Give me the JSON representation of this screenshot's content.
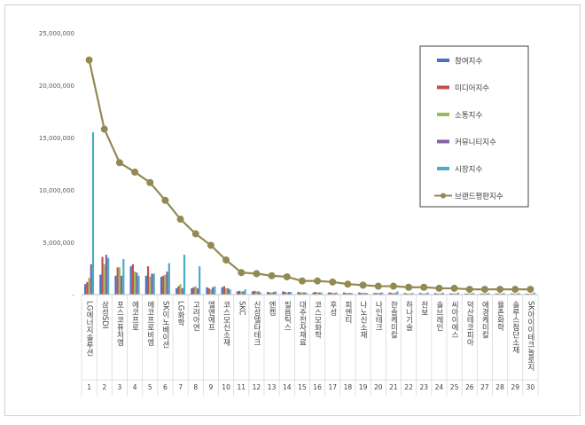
{
  "chart_data": {
    "type": "bar",
    "title": "",
    "xlabel": "",
    "ylabel": "",
    "ylim": [
      0,
      25000000
    ],
    "yticks": [
      "25,000,000",
      "20,000,000",
      "15,000,000",
      "10,000,000",
      "5,000,000",
      "-"
    ],
    "ytick_values": [
      25000000,
      20000000,
      15000000,
      10000000,
      5000000,
      0
    ],
    "legend_position": "top-right",
    "grid": false,
    "categories": [
      "LG에너지솔루션",
      "삼성SDI",
      "포스코퓨처엠",
      "에코프로",
      "에코프로비엠",
      "SK이노베이션",
      "LG화학",
      "고려아연",
      "엘앤에프",
      "코스모신소재",
      "SKC",
      "신성델타테크",
      "엔켐",
      "필옵틱스",
      "대주전자재료",
      "코스모화학",
      "후성",
      "피엔티",
      "나노신소재",
      "나인테크",
      "한솔케미칼",
      "하나기술",
      "천보",
      "솔브레인",
      "씨아이에스",
      "덕산테코피아",
      "애경케미칼",
      "율촌화학",
      "솔루스첨단소재",
      "SK아이이테크놀로지"
    ],
    "indices": [
      "1",
      "2",
      "3",
      "4",
      "5",
      "6",
      "7",
      "8",
      "9",
      "10",
      "11",
      "12",
      "13",
      "14",
      "15",
      "16",
      "17",
      "18",
      "19",
      "20",
      "21",
      "22",
      "23",
      "24",
      "25",
      "26",
      "27",
      "28",
      "29",
      "30"
    ],
    "series": [
      {
        "name": "참여지수",
        "color": "#4472c4",
        "values": [
          1000000,
          1900000,
          1800000,
          2700000,
          1800000,
          1700000,
          600000,
          600000,
          700000,
          700000,
          300000,
          300000,
          250000,
          300000,
          250000,
          200000,
          200000,
          200000,
          200000,
          150000,
          200000,
          150000,
          150000,
          150000,
          120000,
          100000,
          100000,
          100000,
          100000,
          100000
        ]
      },
      {
        "name": "미디어지수",
        "color": "#c0504d",
        "values": [
          1200000,
          3600000,
          2600000,
          2900000,
          2700000,
          1800000,
          800000,
          700000,
          600000,
          800000,
          350000,
          350000,
          200000,
          250000,
          200000,
          250000,
          200000,
          150000,
          150000,
          150000,
          150000,
          100000,
          100000,
          100000,
          100000,
          100000,
          100000,
          100000,
          100000,
          80000
        ]
      },
      {
        "name": "소통지수",
        "color": "#9bbb59",
        "values": [
          1600000,
          2900000,
          2600000,
          2200000,
          1700000,
          1900000,
          1000000,
          800000,
          500000,
          600000,
          300000,
          300000,
          200000,
          200000,
          200000,
          200000,
          150000,
          150000,
          150000,
          150000,
          150000,
          100000,
          100000,
          100000,
          100000,
          100000,
          100000,
          100000,
          80000,
          80000
        ]
      },
      {
        "name": "커뮤니티지수",
        "color": "#8064a2",
        "values": [
          2900000,
          3800000,
          1800000,
          2100000,
          2000000,
          2200000,
          600000,
          600000,
          700000,
          600000,
          300000,
          300000,
          250000,
          250000,
          200000,
          200000,
          150000,
          150000,
          150000,
          150000,
          150000,
          100000,
          100000,
          100000,
          100000,
          100000,
          100000,
          80000,
          80000,
          80000
        ]
      },
      {
        "name": "시장지수",
        "color": "#4bacc6",
        "values": [
          15500000,
          3500000,
          3400000,
          1800000,
          2000000,
          3000000,
          3800000,
          2700000,
          800000,
          500000,
          500000,
          200000,
          300000,
          250000,
          200000,
          200000,
          200000,
          150000,
          150000,
          200000,
          300000,
          150000,
          200000,
          200000,
          200000,
          150000,
          150000,
          150000,
          150000,
          200000
        ]
      },
      {
        "name": "브랜드평판지수",
        "color": "#938953",
        "type": "line",
        "values": [
          22400000,
          15800000,
          12600000,
          11700000,
          10700000,
          9000000,
          7200000,
          5800000,
          4700000,
          3300000,
          2100000,
          2000000,
          1800000,
          1700000,
          1300000,
          1300000,
          1200000,
          1000000,
          900000,
          800000,
          800000,
          700000,
          700000,
          600000,
          600000,
          500000,
          500000,
          500000,
          500000,
          500000
        ]
      }
    ]
  }
}
